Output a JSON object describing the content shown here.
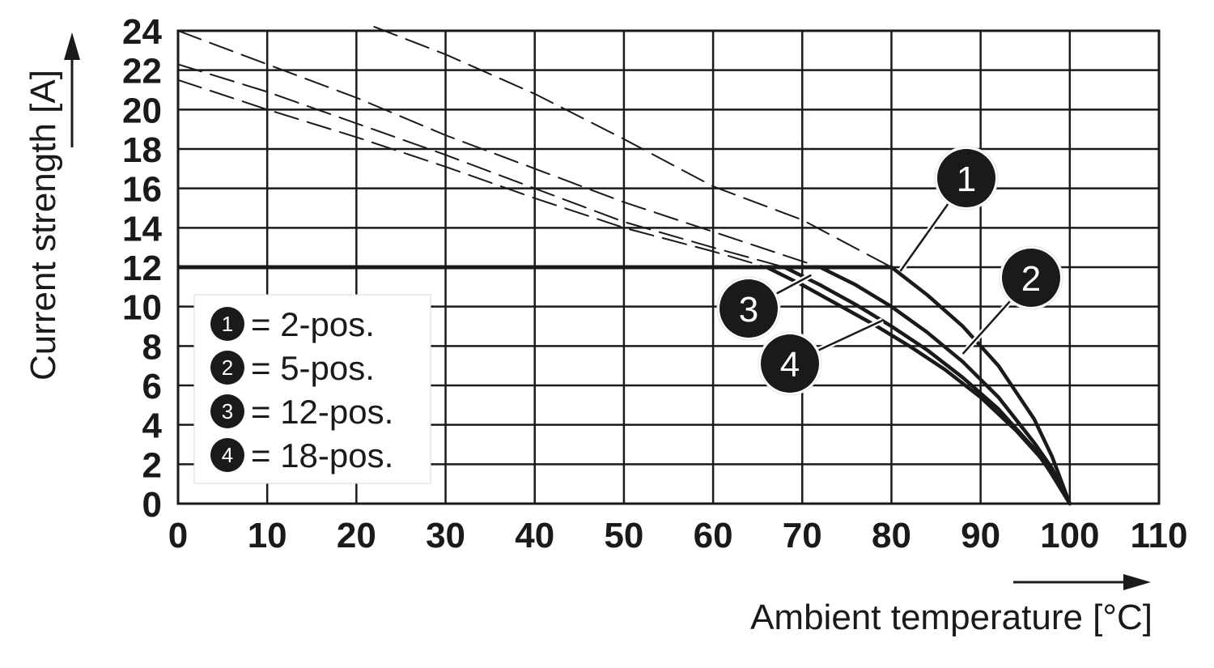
{
  "chart_data": {
    "type": "line",
    "xlabel": "Ambient temperature [°C]",
    "ylabel": "Current strength [A]",
    "xlim": [
      0,
      110
    ],
    "ylim": [
      0,
      24
    ],
    "x_ticks": [
      "0",
      "10",
      "20",
      "30",
      "40",
      "50",
      "60",
      "70",
      "80",
      "90",
      "100",
      "110"
    ],
    "y_ticks": [
      "0",
      "2",
      "4",
      "6",
      "8",
      "10",
      "12",
      "14",
      "16",
      "18",
      "20",
      "22",
      "24"
    ],
    "grid": true,
    "legend_placement": "lower-left",
    "legend": [
      {
        "id": "1",
        "label": "= 2-pos."
      },
      {
        "id": "2",
        "label": "= 5-pos."
      },
      {
        "id": "3",
        "label": "= 12-pos."
      },
      {
        "id": "4",
        "label": "= 18-pos."
      }
    ],
    "limit_line": {
      "style": "solid",
      "x": [
        0,
        80
      ],
      "y": [
        12,
        12
      ]
    },
    "series": [
      {
        "id": "1",
        "style": "solid",
        "x": [
          80,
          84,
          88,
          92,
          96,
          98,
          100
        ],
        "y": [
          12.0,
          10.6,
          9.0,
          7.0,
          4.3,
          2.4,
          0
        ]
      },
      {
        "id": "2",
        "style": "solid",
        "x": [
          72,
          76,
          80,
          84,
          88,
          92,
          96,
          98,
          100
        ],
        "y": [
          12.0,
          11.1,
          10.0,
          8.7,
          7.2,
          5.4,
          3.1,
          1.8,
          0
        ]
      },
      {
        "id": "3",
        "style": "solid",
        "x": [
          68,
          72,
          76,
          80,
          84,
          88,
          92,
          96,
          98,
          100
        ],
        "y": [
          12.0,
          11.1,
          10.1,
          9.0,
          7.8,
          6.4,
          4.8,
          2.8,
          1.5,
          0
        ]
      },
      {
        "id": "4",
        "style": "solid",
        "x": [
          66,
          70,
          74,
          78,
          82,
          86,
          90,
          94,
          97,
          100
        ],
        "y": [
          12.0,
          11.1,
          10.1,
          9.1,
          8.0,
          6.8,
          5.4,
          3.7,
          2.2,
          0
        ]
      },
      {
        "id": "1",
        "style": "dashed",
        "x": [
          22,
          30,
          40,
          50,
          60,
          70,
          80
        ],
        "y": [
          24.2,
          22.8,
          20.8,
          18.5,
          16.1,
          14.4,
          12.0
        ]
      },
      {
        "id": "2",
        "style": "dashed",
        "x": [
          0,
          10,
          20,
          30,
          40,
          50,
          60,
          72
        ],
        "y": [
          24.0,
          22.3,
          20.6,
          18.7,
          17.0,
          15.3,
          13.8,
          12.0
        ]
      },
      {
        "id": "3",
        "style": "dashed",
        "x": [
          0,
          10,
          20,
          30,
          40,
          50,
          60,
          68
        ],
        "y": [
          22.3,
          20.9,
          19.3,
          17.7,
          16.0,
          14.3,
          13.0,
          12.0
        ]
      },
      {
        "id": "4",
        "style": "dashed",
        "x": [
          0,
          10,
          20,
          30,
          40,
          50,
          60,
          66
        ],
        "y": [
          21.5,
          20.0,
          18.6,
          17.1,
          15.5,
          14.0,
          12.8,
          12.0
        ]
      }
    ],
    "callouts": [
      {
        "id": "1",
        "target": [
          81,
          11.8
        ]
      },
      {
        "id": "2",
        "target": [
          88,
          7.6
        ]
      },
      {
        "id": "3",
        "target": [
          71,
          11.6
        ]
      },
      {
        "id": "4",
        "target": [
          79,
          9.3
        ]
      }
    ],
    "colors": {
      "ink": "#1a1a1a",
      "grid": "#1a1a1a",
      "badge_fill": "#1a1a1a",
      "badge_text": "#ffffff"
    }
  }
}
